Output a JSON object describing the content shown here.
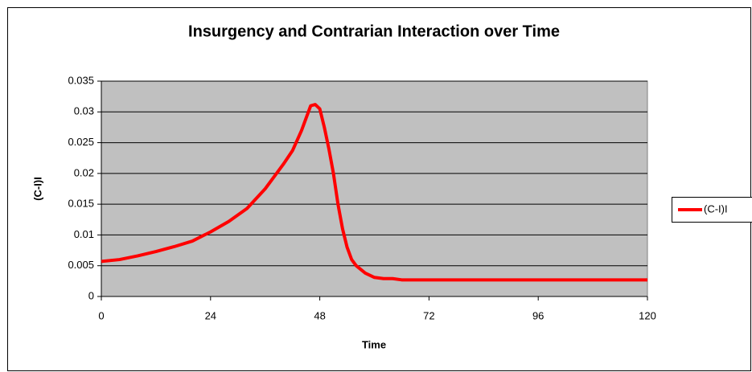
{
  "chart_data": {
    "type": "line",
    "title": "Insurgency and Contrarian Interaction over Time",
    "x_label": "Time",
    "y_label": "(C-I)I",
    "x": [
      0,
      4,
      8,
      12,
      16,
      20,
      24,
      28,
      32,
      36,
      38,
      40,
      42,
      44,
      45,
      46,
      47,
      48,
      49,
      50,
      51,
      52,
      53,
      54,
      55,
      56,
      58,
      60,
      62,
      64,
      66,
      120
    ],
    "series": [
      {
        "name": "(C-I)I",
        "color": "#ff0000",
        "values": [
          0.0057,
          0.006,
          0.0066,
          0.0073,
          0.0081,
          0.009,
          0.0105,
          0.0122,
          0.0143,
          0.0175,
          0.0195,
          0.0215,
          0.0237,
          0.027,
          0.029,
          0.031,
          0.0312,
          0.0305,
          0.0275,
          0.024,
          0.02,
          0.015,
          0.011,
          0.008,
          0.006,
          0.005,
          0.0038,
          0.0031,
          0.0029,
          0.0029,
          0.0027,
          0.0027
        ]
      }
    ],
    "xlim": [
      0,
      120
    ],
    "xticks": [
      0,
      24,
      48,
      72,
      96,
      120
    ],
    "ylim": [
      0,
      0.035
    ],
    "yticks": [
      0,
      0.005,
      0.01,
      0.015,
      0.02,
      0.025,
      0.03,
      0.035
    ],
    "grid": true,
    "legend": "right"
  }
}
